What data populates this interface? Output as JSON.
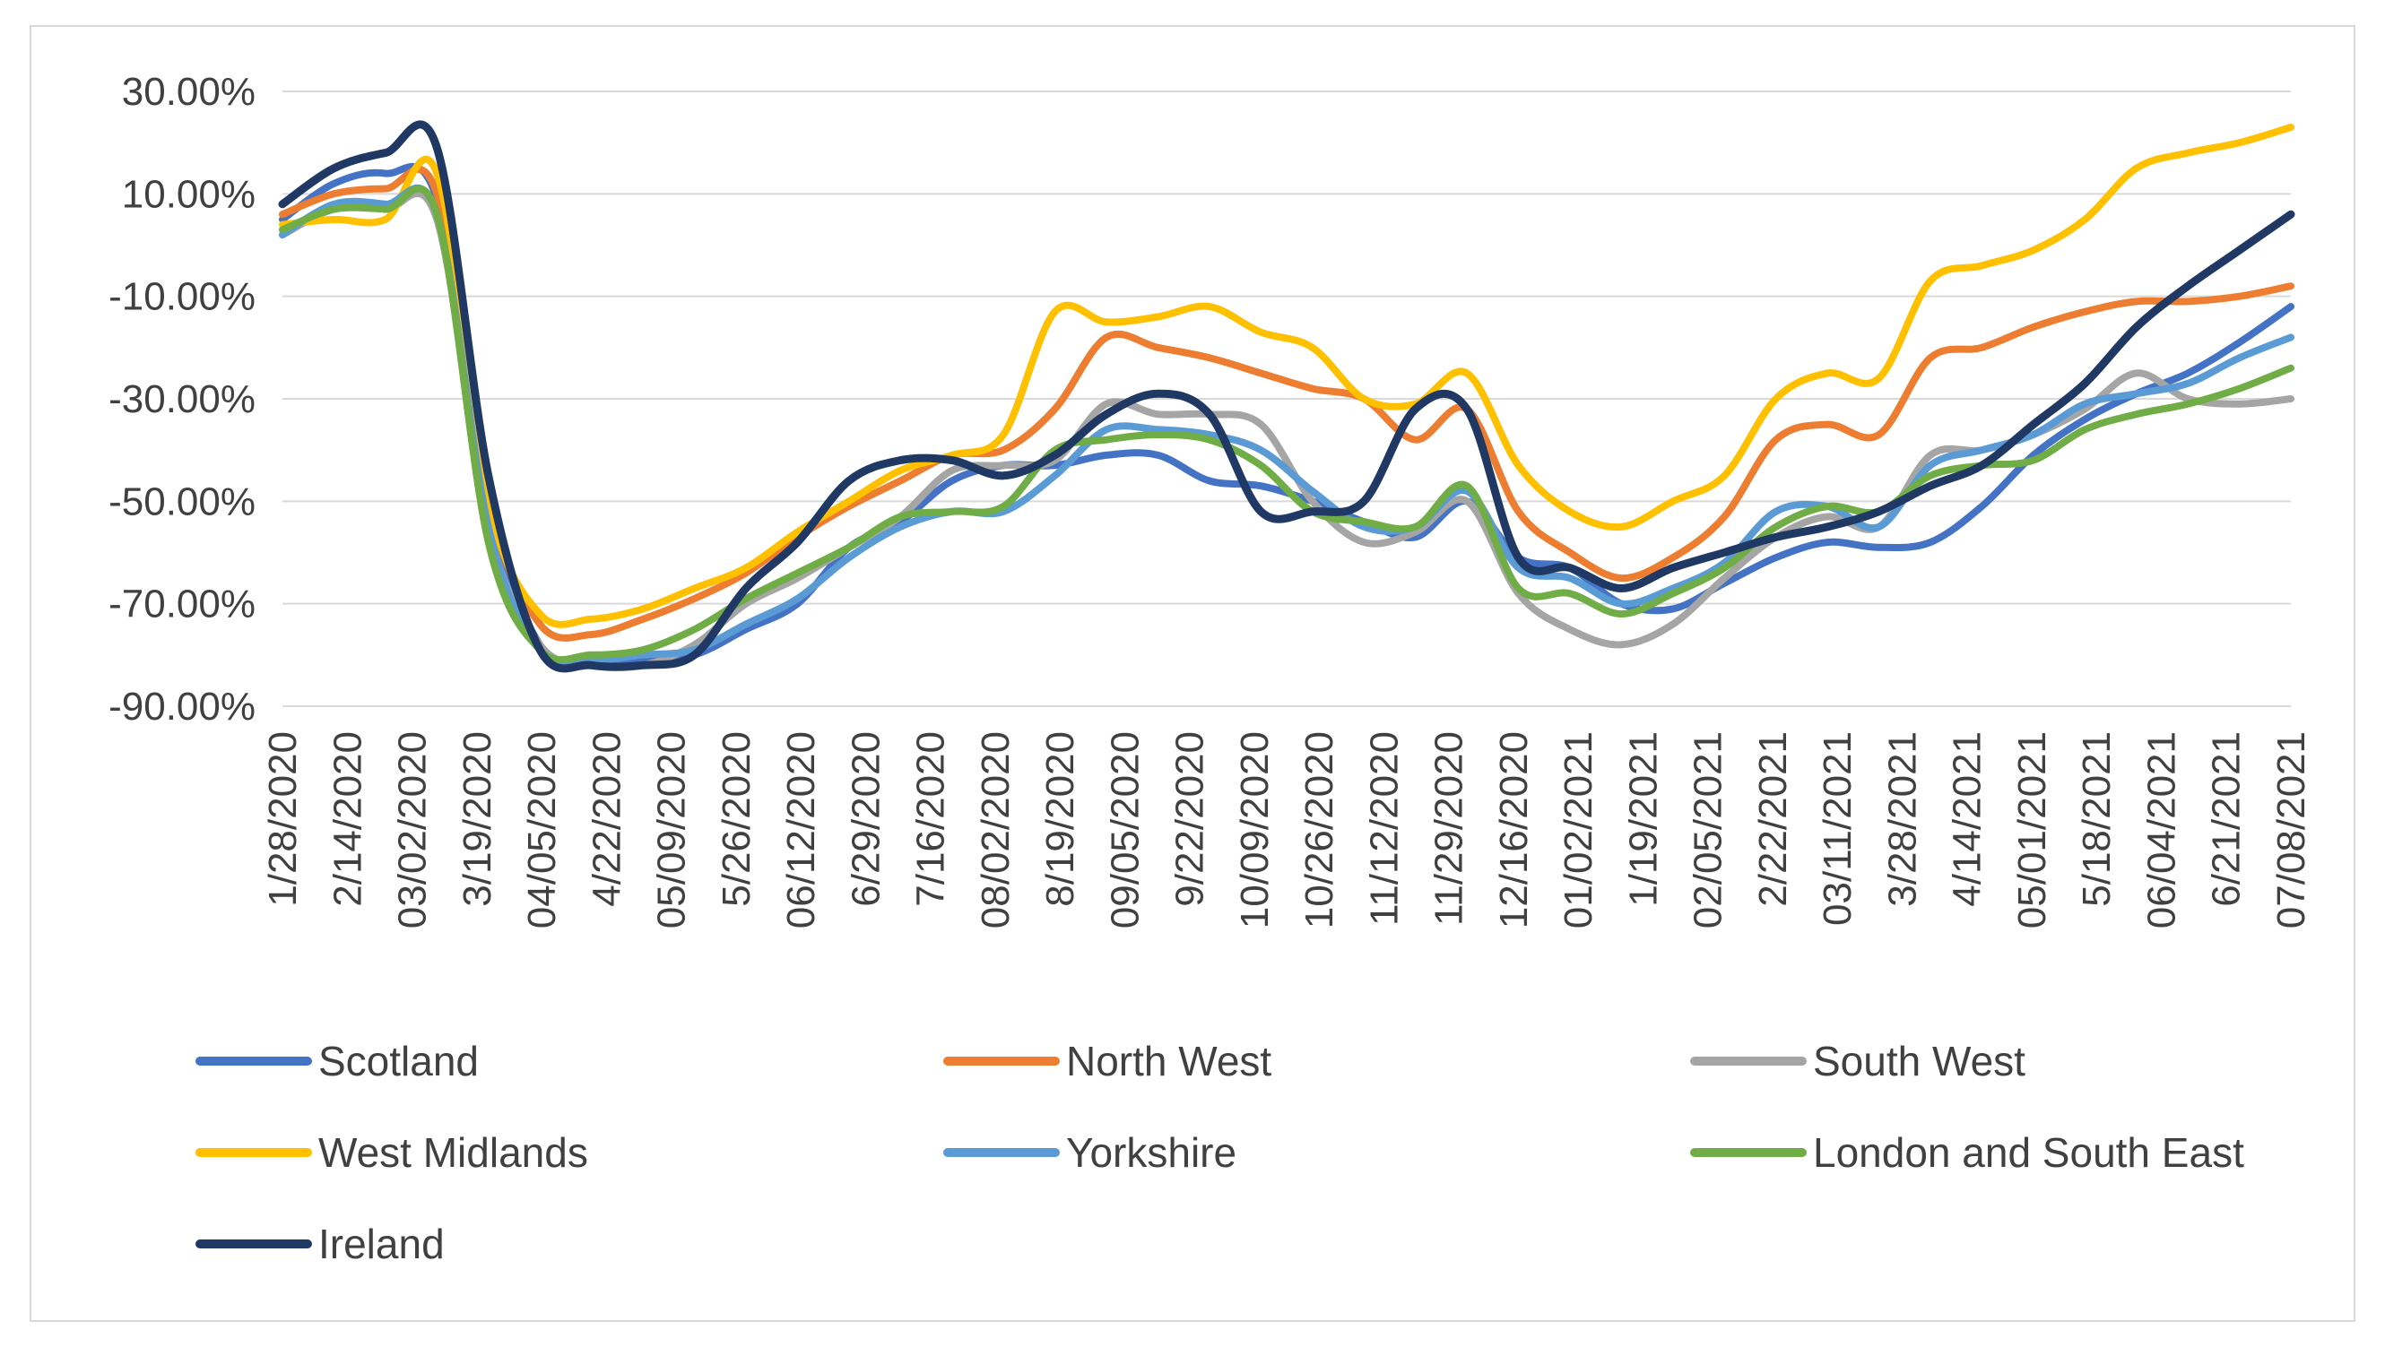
{
  "chart_data": {
    "type": "line",
    "title": "",
    "xlabel": "",
    "ylabel": "",
    "ylim": [
      -90,
      30
    ],
    "y_ticks": [
      "30.00%",
      "10.00%",
      "-10.00%",
      "-30.00%",
      "-50.00%",
      "-70.00%",
      "-90.00%"
    ],
    "y_tick_values": [
      30,
      10,
      -10,
      -30,
      -50,
      -70,
      -90
    ],
    "x_tick_labels": [
      "1/28/2020",
      "2/14/2020",
      "03/02/2020",
      "3/19/2020",
      "04/05/2020",
      "4/22/2020",
      "05/09/2020",
      "5/26/2020",
      "06/12/2020",
      "6/29/2020",
      "7/16/2020",
      "08/02/2020",
      "8/19/2020",
      "09/05/2020",
      "9/22/2020",
      "10/09/2020",
      "10/26/2020",
      "11/12/2020",
      "11/29/2020",
      "12/16/2020",
      "01/02/2021",
      "1/19/2021",
      "02/05/2021",
      "2/22/2021",
      "03/11/2021",
      "3/28/2021",
      "4/14/2021",
      "05/01/2021",
      "5/18/2021",
      "06/04/2021",
      "6/21/2021",
      "07/08/2021"
    ],
    "grid": true,
    "legend_position": "bottom",
    "series": [
      {
        "name": "Scotland",
        "color": "#4472C4",
        "values": [
          5,
          12,
          14,
          9,
          -50,
          -78,
          -81,
          -81,
          -80,
          -75,
          -70,
          -59,
          -54,
          -46,
          -43,
          -43,
          -41,
          -41,
          -46,
          -47,
          -50,
          -54,
          -57,
          -50,
          -61,
          -63,
          -70,
          -71,
          -66,
          -61,
          -58,
          -59,
          -58,
          -51,
          -41,
          -34,
          -29,
          -25,
          -19,
          -12
        ]
      },
      {
        "name": "North West",
        "color": "#ED7D31",
        "values": [
          6,
          10,
          11,
          10,
          -50,
          -74,
          -76,
          -73,
          -69,
          -64,
          -57,
          -51,
          -46,
          -41,
          -40,
          -32,
          -18,
          -20,
          -22,
          -25,
          -28,
          -30,
          -38,
          -32,
          -52,
          -60,
          -65,
          -61,
          -53,
          -38,
          -35,
          -37,
          -22,
          -20,
          -16,
          -13,
          -11,
          -11,
          -10,
          -8
        ]
      },
      {
        "name": "South West",
        "color": "#A5A5A5",
        "values": [
          2,
          7,
          7,
          5,
          -55,
          -78,
          -82,
          -82,
          -78,
          -70,
          -65,
          -59,
          -53,
          -44,
          -43,
          -42,
          -31,
          -33,
          -33,
          -35,
          -50,
          -58,
          -56,
          -50,
          -68,
          -75,
          -78,
          -74,
          -65,
          -57,
          -53,
          -55,
          -41,
          -40,
          -37,
          -32,
          -25,
          -30,
          -31,
          -30
        ]
      },
      {
        "name": "West Midlands",
        "color": "#FFC000",
        "values": [
          4,
          5,
          5,
          14,
          -50,
          -72,
          -73,
          -71,
          -67,
          -63,
          -56,
          -50,
          -44,
          -41,
          -37,
          -13,
          -15,
          -14,
          -12,
          -17,
          -20,
          -30,
          -31,
          -25,
          -43,
          -52,
          -55,
          -50,
          -45,
          -30,
          -25,
          -26,
          -7,
          -4,
          -1,
          5,
          15,
          18,
          20,
          23
        ]
      },
      {
        "name": "Yorkshire",
        "color": "#5B9BD5",
        "values": [
          2,
          8,
          8,
          6,
          -55,
          -79,
          -81,
          -80,
          -79,
          -74,
          -69,
          -61,
          -55,
          -52,
          -52,
          -45,
          -36,
          -36,
          -37,
          -40,
          -48,
          -55,
          -55,
          -48,
          -63,
          -65,
          -70,
          -67,
          -62,
          -52,
          -51,
          -55,
          -43,
          -40,
          -37,
          -31,
          -29,
          -27,
          -22,
          -18
        ]
      },
      {
        "name": "London and South East",
        "color": "#70AD47",
        "values": [
          3,
          7,
          7,
          6,
          -58,
          -79,
          -80,
          -79,
          -75,
          -69,
          -64,
          -59,
          -53,
          -52,
          -51,
          -40,
          -38,
          -37,
          -38,
          -43,
          -52,
          -54,
          -55,
          -47,
          -67,
          -68,
          -72,
          -68,
          -63,
          -55,
          -51,
          -52,
          -45,
          -43,
          -42,
          -36,
          -33,
          -31,
          -28,
          -24
        ]
      },
      {
        "name": "Ireland",
        "color": "#203864",
        "values": [
          8,
          15,
          18,
          19,
          -45,
          -79,
          -82,
          -82,
          -80,
          -67,
          -58,
          -46,
          -42,
          -42,
          -45,
          -41,
          -33,
          -29,
          -33,
          -52,
          -52,
          -50,
          -32,
          -32,
          -61,
          -63,
          -67,
          -63,
          -60,
          -57,
          -55,
          -52,
          -47,
          -43,
          -35,
          -27,
          -16,
          -8,
          -1,
          6
        ]
      }
    ]
  }
}
